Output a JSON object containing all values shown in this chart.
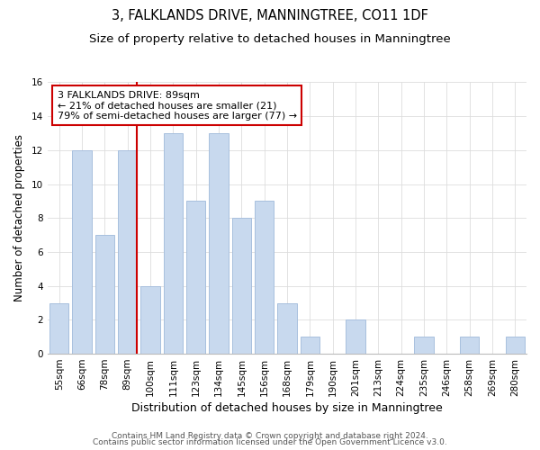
{
  "title": "3, FALKLANDS DRIVE, MANNINGTREE, CO11 1DF",
  "subtitle": "Size of property relative to detached houses in Manningtree",
  "xlabel": "Distribution of detached houses by size in Manningtree",
  "ylabel": "Number of detached properties",
  "bar_labels": [
    "55sqm",
    "66sqm",
    "78sqm",
    "89sqm",
    "100sqm",
    "111sqm",
    "123sqm",
    "134sqm",
    "145sqm",
    "156sqm",
    "168sqm",
    "179sqm",
    "190sqm",
    "201sqm",
    "213sqm",
    "224sqm",
    "235sqm",
    "246sqm",
    "258sqm",
    "269sqm",
    "280sqm"
  ],
  "bar_values": [
    3,
    12,
    7,
    12,
    4,
    13,
    9,
    13,
    8,
    9,
    3,
    1,
    0,
    2,
    0,
    0,
    1,
    0,
    1,
    0,
    1
  ],
  "bar_color": "#c8d9ee",
  "bar_edge_color": "#a8c0de",
  "vline_color": "#cc0000",
  "annotation_lines": [
    "3 FALKLANDS DRIVE: 89sqm",
    "← 21% of detached houses are smaller (21)",
    "79% of semi-detached houses are larger (77) →"
  ],
  "annotation_box_color": "#ffffff",
  "annotation_box_edge_color": "#cc0000",
  "ylim": [
    0,
    16
  ],
  "yticks": [
    0,
    2,
    4,
    6,
    8,
    10,
    12,
    14,
    16
  ],
  "footnote1": "Contains HM Land Registry data © Crown copyright and database right 2024.",
  "footnote2": "Contains public sector information licensed under the Open Government Licence v3.0.",
  "background_color": "#ffffff",
  "grid_color": "#dddddd",
  "title_fontsize": 10.5,
  "subtitle_fontsize": 9.5,
  "xlabel_fontsize": 9,
  "ylabel_fontsize": 8.5,
  "tick_fontsize": 7.5,
  "annotation_fontsize": 8,
  "footnote_fontsize": 6.5
}
